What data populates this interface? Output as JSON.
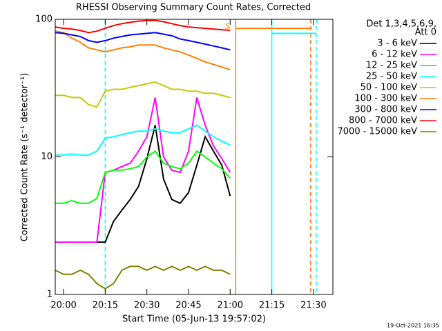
{
  "chart_data": {
    "type": "line",
    "title": "RHESSI Observing Summary Count Rates, Corrected",
    "xlabel": "Start Time (05-Jun-13 19:57:02)",
    "ylabel": "Corrected Count Rate (s⁻¹ detector⁻¹)",
    "footer": "19-Oct-2021 16:35",
    "legend_header": [
      "Det 1,3,4,5,6,9,",
      "Att 0"
    ],
    "legend": "upper right",
    "log_y": true,
    "xlim": [
      "19:57",
      "21:37"
    ],
    "xticks": [
      "20:00",
      "20:15",
      "20:30",
      "20:45",
      "21:00",
      "21:15",
      "21:30"
    ],
    "ylim": [
      1,
      100
    ],
    "yticks": [
      1,
      10,
      100
    ],
    "x": [
      "19:57",
      "20:00",
      "20:03",
      "20:06",
      "20:09",
      "20:12",
      "20:15",
      "20:18",
      "20:21",
      "20:24",
      "20:27",
      "20:30",
      "20:33",
      "20:36",
      "20:39",
      "20:42",
      "20:45",
      "20:48",
      "20:51",
      "20:54",
      "20:57",
      "21:00",
      "21:01",
      "21:02",
      "21:15",
      "21:29",
      "21:31"
    ],
    "series": [
      {
        "name": "3 - 6 keV",
        "color": "#000000",
        "values": [
          null,
          null,
          null,
          null,
          null,
          2.4,
          2.4,
          3.4,
          4.1,
          4.9,
          6.1,
          9.7,
          17,
          6.9,
          4.9,
          4.6,
          5.5,
          8.7,
          14,
          11,
          8.7,
          5.2,
          null,
          null,
          null,
          null,
          null
        ]
      },
      {
        "name": "6 - 12 keV",
        "color": "#ff00ff",
        "values": [
          2.4,
          2.4,
          2.4,
          2.4,
          2.4,
          2.4,
          7.7,
          8,
          8.5,
          9,
          11,
          14,
          27,
          10,
          8,
          7.7,
          11,
          27,
          17,
          12,
          9.7,
          7.7,
          null,
          null,
          null,
          null,
          null
        ]
      },
      {
        "name": "12 - 25 keV",
        "color": "#00ff00",
        "values": [
          4.6,
          4.6,
          4.8,
          4.6,
          4.6,
          5,
          7.7,
          8,
          8,
          8.2,
          8.5,
          10,
          11,
          9,
          8.5,
          8.2,
          9,
          11,
          10,
          9,
          8.2,
          7,
          null,
          null,
          null,
          null,
          null
        ]
      },
      {
        "name": "25 - 50 keV",
        "color": "#00ffff",
        "values": [
          10.3,
          10.3,
          10.5,
          10.3,
          10.3,
          11,
          13.7,
          14,
          14.5,
          15,
          15.4,
          15.4,
          16,
          15.4,
          15,
          15,
          16,
          17,
          15.4,
          14,
          13,
          12.2,
          null,
          null,
          79,
          79,
          79
        ]
      },
      {
        "name": "50 - 100 keV",
        "color": "#c8c800",
        "values": [
          28,
          28,
          27,
          27,
          24,
          23,
          30,
          31,
          31,
          32,
          33,
          34,
          35,
          33,
          31,
          31,
          30,
          30,
          29,
          29,
          28,
          27,
          null,
          null,
          null,
          null,
          null
        ]
      },
      {
        "name": "100 - 300 keV",
        "color": "#ff8000",
        "values": [
          82,
          80,
          73,
          68,
          62,
          60,
          58,
          60,
          62,
          63,
          65,
          65,
          65,
          62,
          60,
          58,
          55,
          52,
          49,
          47,
          45,
          43,
          null,
          86,
          86,
          86,
          null
        ]
      },
      {
        "name": "300 - 800 keV",
        "color": "#0000ff",
        "values": [
          80,
          79,
          77,
          75,
          70,
          68,
          70,
          73,
          75,
          77,
          78,
          79,
          80,
          78,
          76,
          72,
          70,
          68,
          66,
          64,
          62,
          60,
          null,
          null,
          null,
          null,
          null
        ]
      },
      {
        "name": "800 - 7000 keV",
        "color": "#ff0000",
        "values": [
          88,
          86,
          85,
          83,
          80,
          82,
          86,
          90,
          93,
          95,
          97,
          98,
          98,
          96,
          93,
          90,
          88,
          87,
          86,
          85,
          84,
          83,
          null,
          null,
          null,
          null,
          null
        ]
      },
      {
        "name": "7000 - 15000 keV",
        "color": "#808000",
        "values": [
          1.5,
          1.4,
          1.4,
          1.5,
          1.4,
          1.2,
          1.1,
          1.2,
          1.5,
          1.6,
          1.6,
          1.5,
          1.6,
          1.5,
          1.6,
          1.5,
          1.6,
          1.5,
          1.6,
          1.5,
          1.5,
          1.4,
          null,
          null,
          null,
          null,
          null
        ]
      }
    ],
    "markers": [
      {
        "x": "20:15",
        "color": "#00ffff",
        "dashed": true
      },
      {
        "x": "21:02",
        "color": "#ff8000",
        "dashed": false
      },
      {
        "x": "21:15",
        "color": "#00ffff",
        "dashed": false
      },
      {
        "x": "21:29",
        "color": "#ff8000",
        "dashed": true
      },
      {
        "x": "21:31",
        "color": "#00ffff",
        "dashed": true
      }
    ],
    "annotations": [
      {
        "text": "S",
        "x": "21:00",
        "y": 88,
        "color": "#ff8000"
      }
    ]
  }
}
